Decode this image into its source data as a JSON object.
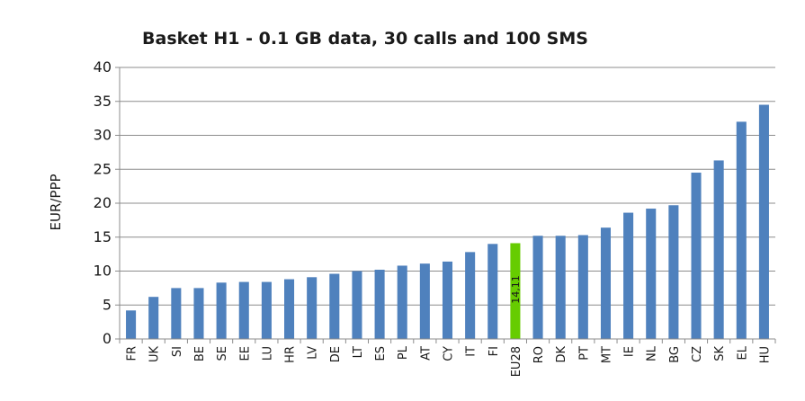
{
  "chart_data": {
    "type": "bar",
    "title": "Basket H1 - 0.1 GB data, 30 calls and 100 SMS",
    "xlabel": "",
    "ylabel": "EUR/PPP",
    "ylim": [
      0,
      40
    ],
    "yticks": [
      "0",
      "5",
      "10",
      "15",
      "20",
      "25",
      "30",
      "35",
      "40"
    ],
    "grid": true,
    "legend": "none",
    "categories": [
      "FR",
      "UK",
      "SI",
      "BE",
      "SE",
      "EE",
      "LU",
      "HR",
      "LV",
      "DE",
      "LT",
      "ES",
      "PL",
      "AT",
      "CY",
      "IT",
      "FI",
      "EU28",
      "RO",
      "DK",
      "PT",
      "MT",
      "IE",
      "NL",
      "BG",
      "CZ",
      "SK",
      "EL",
      "HU"
    ],
    "values": [
      4.2,
      6.2,
      7.5,
      7.5,
      8.3,
      8.4,
      8.4,
      8.8,
      9.1,
      9.6,
      10.0,
      10.2,
      10.8,
      11.1,
      11.4,
      12.8,
      14.0,
      14.11,
      15.2,
      15.2,
      15.3,
      16.4,
      18.6,
      19.2,
      19.7,
      24.5,
      26.3,
      32.0,
      34.5
    ],
    "highlight_index": 17,
    "highlight_label": "14,11",
    "colors": {
      "bar": "#4f81bd",
      "highlight": "#66cc00",
      "grid": "#8c8c8c",
      "axis": "#8c8c8c"
    }
  }
}
